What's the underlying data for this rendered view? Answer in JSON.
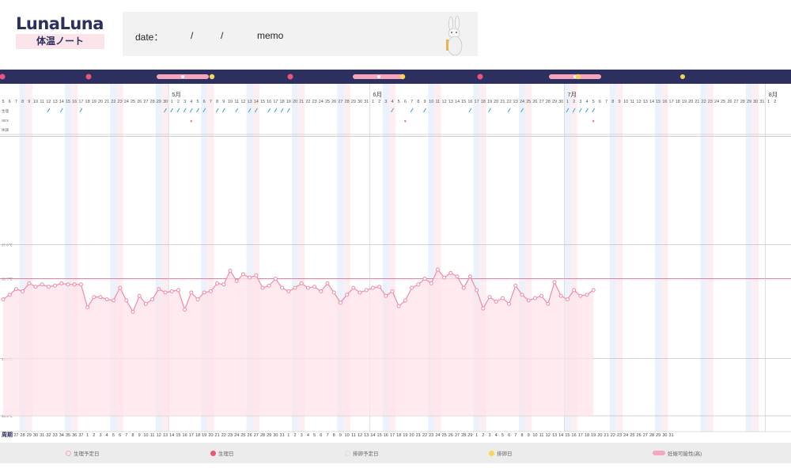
{
  "header": {
    "logo": "LunaLuna",
    "logo_sub": "体温ノート",
    "memo_date_label": "date：",
    "memo_slash": "/",
    "memo_label": "memo"
  },
  "legend": {
    "items": [
      {
        "label": "生理予定日",
        "icon": "period-predicted-icon"
      },
      {
        "label": "生理日",
        "icon": "period-day-icon"
      },
      {
        "label": "排卵予定日",
        "icon": "ovulation-predicted-icon"
      },
      {
        "label": "排卵日",
        "icon": "ovulation-day-icon"
      },
      {
        "label": "妊娠可能性(高)",
        "icon": "fertile-window-icon"
      }
    ]
  },
  "chart_data": {
    "type": "line",
    "row_labels": [
      "生理",
      "SEX",
      "体調"
    ],
    "cycle_label": "周期",
    "y_ticks": [
      {
        "value": 37.0,
        "label": "37.0℃"
      },
      {
        "value": 36.7,
        "label": "36.7℃"
      },
      {
        "value": 36.0,
        "label": "36.0℃"
      },
      {
        "value": 35.5,
        "label": "35.5℃"
      }
    ],
    "coverline": 36.7,
    "ylim": [
      35.5,
      37.5
    ],
    "months": [
      {
        "label": "5月",
        "day_index": 26
      },
      {
        "label": "6月",
        "day_index": 57
      },
      {
        "label": "7月",
        "day_index": 87
      },
      {
        "label": "8月",
        "day_index": 118
      }
    ],
    "dates": [
      "5",
      "6",
      "7",
      "8",
      "9",
      "10",
      "11",
      "12",
      "13",
      "14",
      "15",
      "16",
      "17",
      "18",
      "19",
      "20",
      "21",
      "22",
      "23",
      "24",
      "25",
      "26",
      "27",
      "28",
      "29",
      "30",
      "1",
      "2",
      "3",
      "4",
      "5",
      "6",
      "7",
      "8",
      "9",
      "10",
      "11",
      "12",
      "13",
      "14",
      "15",
      "16",
      "17",
      "18",
      "19",
      "20",
      "21",
      "22",
      "23",
      "24",
      "25",
      "26",
      "27",
      "28",
      "29",
      "30",
      "31",
      "1",
      "2",
      "3",
      "4",
      "5",
      "6",
      "7",
      "8",
      "9",
      "10",
      "11",
      "12",
      "13",
      "14",
      "15",
      "16",
      "17",
      "18",
      "19",
      "20",
      "21",
      "22",
      "23",
      "24",
      "25",
      "26",
      "27",
      "28",
      "29",
      "30",
      "1",
      "2",
      "3",
      "4",
      "5",
      "6",
      "7",
      "8",
      "9",
      "10",
      "11",
      "12",
      "13",
      "14",
      "15",
      "16",
      "17",
      "18",
      "19",
      "20",
      "21",
      "22",
      "23",
      "24",
      "25",
      "26",
      "27",
      "28",
      "29",
      "30",
      "31",
      "1",
      "2"
    ],
    "cycle_days": [
      "27",
      "28",
      "29",
      "30",
      "31",
      "32",
      "33",
      "34",
      "35",
      "36",
      "37",
      "1",
      "2",
      "3",
      "4",
      "5",
      "6",
      "7",
      "8",
      "9",
      "10",
      "11",
      "12",
      "13",
      "14",
      "15",
      "16",
      "17",
      "18",
      "19",
      "20",
      "21",
      "22",
      "23",
      "24",
      "25",
      "26",
      "27",
      "28",
      "29",
      "30",
      "31",
      "1",
      "2",
      "3",
      "4",
      "5",
      "6",
      "7",
      "8",
      "9",
      "10",
      "11",
      "12",
      "13",
      "14",
      "15",
      "16",
      "17",
      "18",
      "19",
      "20",
      "21",
      "22",
      "23",
      "24",
      "25",
      "26",
      "27",
      "28",
      "29",
      "1",
      "2",
      "3",
      "4",
      "5",
      "6",
      "7",
      "8",
      "9",
      "10",
      "11",
      "12",
      "13",
      "14",
      "15",
      "16",
      "17",
      "18",
      "19",
      "20",
      "21",
      "22",
      "23",
      "24",
      "25",
      "26",
      "27",
      "28",
      "29",
      "30",
      "31"
    ],
    "temps": [
      36.52,
      36.56,
      36.61,
      36.59,
      36.66,
      36.63,
      36.65,
      36.63,
      36.64,
      36.66,
      36.65,
      36.65,
      36.65,
      36.45,
      36.54,
      36.54,
      36.52,
      36.51,
      36.62,
      36.51,
      36.41,
      36.55,
      36.48,
      36.52,
      36.61,
      36.58,
      36.59,
      36.6,
      36.43,
      36.58,
      36.52,
      36.58,
      36.59,
      36.66,
      36.65,
      36.77,
      36.68,
      36.74,
      36.71,
      36.73,
      36.62,
      36.64,
      36.7,
      36.62,
      36.59,
      36.62,
      36.66,
      36.62,
      36.63,
      36.59,
      36.66,
      36.58,
      36.49,
      36.56,
      36.62,
      36.58,
      36.6,
      36.62,
      36.63,
      36.55,
      36.59,
      36.46,
      36.51,
      36.62,
      36.65,
      36.7,
      36.66,
      36.78,
      36.71,
      36.75,
      36.72,
      36.62,
      36.72,
      36.6,
      36.44,
      36.54,
      36.5,
      36.53,
      36.48,
      36.64,
      36.56,
      36.51,
      36.53,
      36.55,
      36.48,
      36.67,
      36.55,
      36.52,
      36.6,
      36.55,
      36.56,
      36.6
    ],
    "period_marks": [
      7,
      9,
      12,
      25,
      26,
      27,
      28,
      29,
      30,
      31,
      33,
      34,
      36,
      38,
      39,
      41,
      42,
      43,
      44,
      60,
      63,
      65,
      72,
      75,
      78,
      80,
      87,
      88,
      89,
      90,
      91
    ],
    "sex_marks": [
      29,
      62,
      91
    ],
    "grid": true
  }
}
